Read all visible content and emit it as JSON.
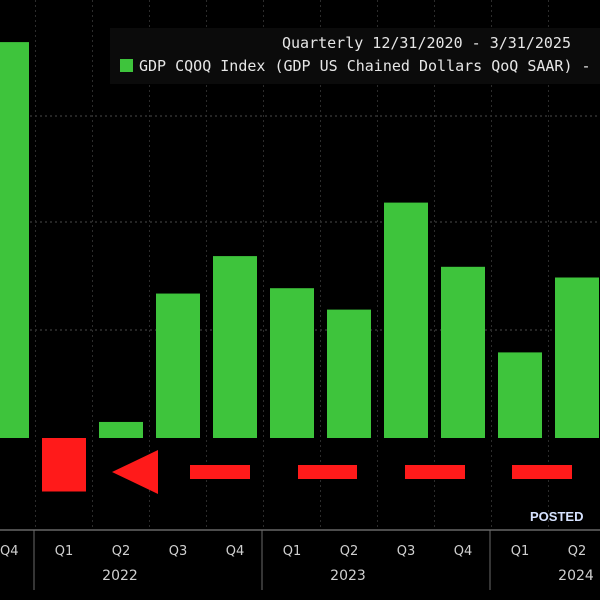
{
  "chart_data": {
    "type": "bar",
    "title": "Quarterly 12/31/2020 - 3/31/2025",
    "legend": {
      "entry": "GDP CQOQ Index (GDP US Chained Dollars QoQ SAAR) -",
      "color": "#3ec43c",
      "placement": "top-right"
    },
    "categories": [
      "Q4",
      "Q1",
      "Q2",
      "Q3",
      "Q4",
      "Q1",
      "Q2",
      "Q3",
      "Q4",
      "Q1",
      "Q2"
    ],
    "year_labels": [
      "2022",
      "2023",
      "2024"
    ],
    "values": [
      7.4,
      -1.0,
      0.3,
      2.7,
      3.4,
      2.8,
      2.4,
      4.4,
      3.2,
      1.6,
      3.0
    ],
    "ylim": [
      -1.6,
      7.8
    ],
    "grid": true,
    "colors": {
      "positive": "#3ec43c",
      "negative": "#ff1a1a",
      "arrow": "#ff1a1a"
    },
    "annotation": "POSTED"
  }
}
